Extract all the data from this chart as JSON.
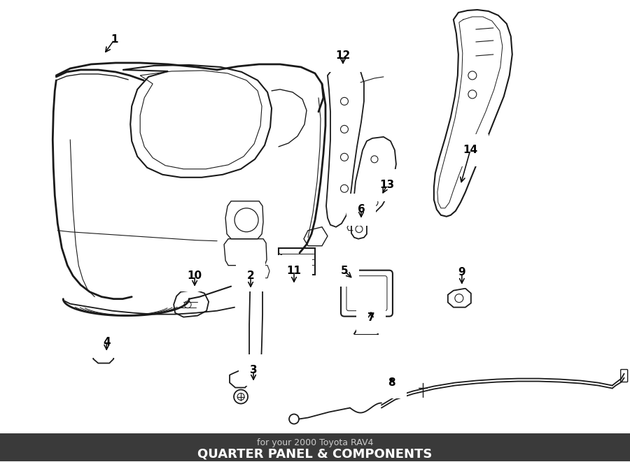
{
  "title": "QUARTER PANEL & COMPONENTS",
  "subtitle": "for your 2000 Toyota RAV4",
  "bg": "#ffffff",
  "lc": "#1a1a1a",
  "title_bg": "#3a3a3a",
  "title_fg": "#ffffff",
  "subtitle_fg": "#cccccc",
  "label_positions": {
    "1": [
      163,
      57,
      148,
      78
    ],
    "2": [
      358,
      395,
      358,
      415
    ],
    "3": [
      362,
      530,
      362,
      548
    ],
    "4": [
      152,
      490,
      152,
      505
    ],
    "5": [
      492,
      388,
      505,
      400
    ],
    "6": [
      516,
      300,
      516,
      315
    ],
    "7": [
      530,
      455,
      530,
      443
    ],
    "8": [
      560,
      548,
      560,
      538
    ],
    "9": [
      660,
      390,
      660,
      410
    ],
    "10": [
      278,
      395,
      278,
      413
    ],
    "11": [
      420,
      388,
      420,
      408
    ],
    "12": [
      490,
      80,
      490,
      95
    ],
    "13": [
      553,
      265,
      545,
      280
    ],
    "14": [
      672,
      215,
      658,
      265
    ]
  }
}
